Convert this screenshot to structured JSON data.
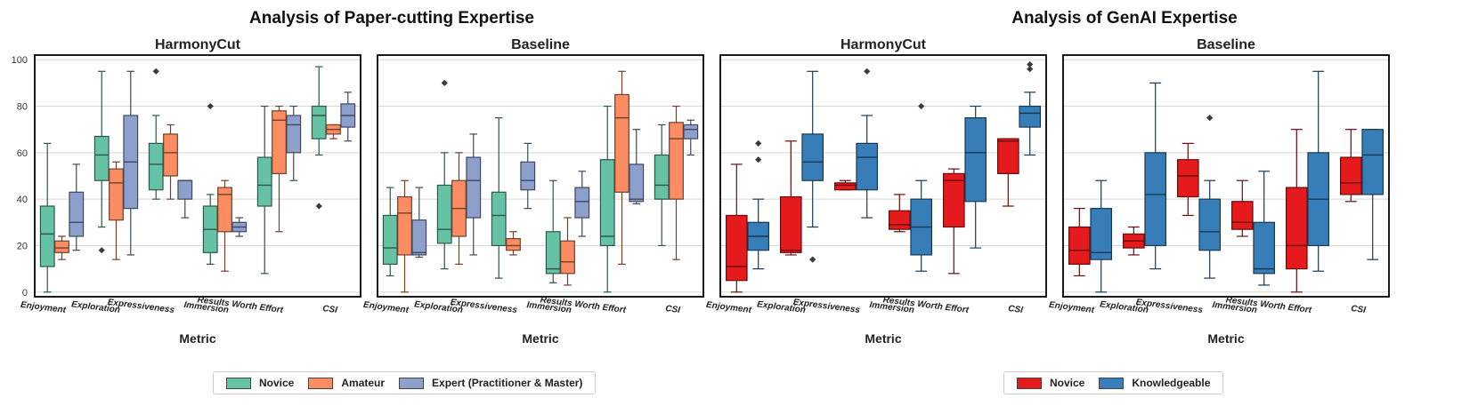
{
  "figure": {
    "left_title": "Analysis of Paper-cutting Expertise",
    "right_title": "Analysis of GenAI Expertise"
  },
  "legend_left": [
    {
      "label": "Novice",
      "color": "#66c2a5"
    },
    {
      "label": "Amateur",
      "color": "#fc8d62"
    },
    {
      "label": "Expert (Practitioner & Master)",
      "color": "#8da0cb"
    }
  ],
  "legend_right": [
    {
      "label": "Novice",
      "color": "#e41a1c"
    },
    {
      "label": "Knowledgeable",
      "color": "#377eb8"
    }
  ],
  "chart_data": [
    {
      "type": "box",
      "title": "HarmonyCut",
      "group": "Paper-cutting Expertise",
      "xlabel": "Metric",
      "ylabel": "",
      "ylim": [
        -2,
        102
      ],
      "yticks": [
        0,
        20,
        40,
        60,
        80,
        100
      ],
      "grid": true,
      "categories": [
        "Enjoyment",
        "Exploration",
        "Expressiveness",
        "Immersion",
        "Results Worth Effort",
        "CSI"
      ],
      "series": [
        {
          "name": "Novice",
          "color": "#66c2a5",
          "boxes": [
            {
              "wlo": 0,
              "q1": 11,
              "med": 25,
              "q3": 37,
              "whi": 64,
              "outliers": []
            },
            {
              "wlo": 28,
              "q1": 48,
              "med": 59,
              "q3": 67,
              "whi": 95,
              "outliers": [
                18
              ]
            },
            {
              "wlo": 40,
              "q1": 44,
              "med": 55,
              "q3": 64,
              "whi": 76,
              "outliers": [
                95
              ]
            },
            {
              "wlo": 12,
              "q1": 17,
              "med": 27,
              "q3": 37,
              "whi": 42,
              "outliers": [
                80
              ]
            },
            {
              "wlo": 8,
              "q1": 37,
              "med": 46,
              "q3": 58,
              "whi": 80,
              "outliers": []
            },
            {
              "wlo": 59,
              "q1": 66,
              "med": 76,
              "q3": 80,
              "whi": 97,
              "outliers": [
                37
              ]
            }
          ]
        },
        {
          "name": "Amateur",
          "color": "#fc8d62",
          "boxes": [
            {
              "wlo": 14,
              "q1": 17,
              "med": 19,
              "q3": 22,
              "whi": 24,
              "outliers": []
            },
            {
              "wlo": 14,
              "q1": 31,
              "med": 47,
              "q3": 53,
              "whi": 56,
              "outliers": []
            },
            {
              "wlo": 40,
              "q1": 50,
              "med": 60,
              "q3": 68,
              "whi": 72,
              "outliers": []
            },
            {
              "wlo": 9,
              "q1": 26,
              "med": 42,
              "q3": 45,
              "whi": 48,
              "outliers": []
            },
            {
              "wlo": 26,
              "q1": 51,
              "med": 74,
              "q3": 78,
              "whi": 80,
              "outliers": []
            },
            {
              "wlo": 66,
              "q1": 68,
              "med": 70,
              "q3": 72,
              "whi": 72,
              "outliers": []
            }
          ]
        },
        {
          "name": "Expert (Practitioner & Master)",
          "color": "#8da0cb",
          "boxes": [
            {
              "wlo": 18,
              "q1": 24,
              "med": 30,
              "q3": 43,
              "whi": 55,
              "outliers": []
            },
            {
              "wlo": 16,
              "q1": 36,
              "med": 56,
              "q3": 76,
              "whi": 95,
              "outliers": []
            },
            {
              "wlo": 32,
              "q1": 40,
              "med": 48,
              "q3": 48,
              "whi": 48,
              "outliers": []
            },
            {
              "wlo": 24,
              "q1": 26,
              "med": 28,
              "q3": 30,
              "whi": 32,
              "outliers": []
            },
            {
              "wlo": 48,
              "q1": 60,
              "med": 72,
              "q3": 76,
              "whi": 80,
              "outliers": []
            },
            {
              "wlo": 65,
              "q1": 71,
              "med": 76,
              "q3": 81,
              "whi": 86,
              "outliers": []
            }
          ]
        }
      ]
    },
    {
      "type": "box",
      "title": "Baseline",
      "group": "Paper-cutting Expertise",
      "xlabel": "Metric",
      "ylabel": "",
      "ylim": [
        -2,
        102
      ],
      "yticks": [
        0,
        20,
        40,
        60,
        80,
        100
      ],
      "grid": true,
      "categories": [
        "Enjoyment",
        "Exploration",
        "Expressiveness",
        "Immersion",
        "Results Worth Effort",
        "CSI"
      ],
      "series": [
        {
          "name": "Novice",
          "color": "#66c2a5",
          "boxes": [
            {
              "wlo": 7,
              "q1": 12,
              "med": 19,
              "q3": 33,
              "whi": 45,
              "outliers": []
            },
            {
              "wlo": 10,
              "q1": 21,
              "med": 27,
              "q3": 46,
              "whi": 60,
              "outliers": [
                90
              ]
            },
            {
              "wlo": 6,
              "q1": 20,
              "med": 33,
              "q3": 43,
              "whi": 75,
              "outliers": []
            },
            {
              "wlo": 4,
              "q1": 8,
              "med": 10,
              "q3": 26,
              "whi": 48,
              "outliers": []
            },
            {
              "wlo": 0,
              "q1": 20,
              "med": 24,
              "q3": 57,
              "whi": 80,
              "outliers": []
            },
            {
              "wlo": 20,
              "q1": 40,
              "med": 46,
              "q3": 59,
              "whi": 72,
              "outliers": []
            }
          ]
        },
        {
          "name": "Amateur",
          "color": "#fc8d62",
          "boxes": [
            {
              "wlo": 0,
              "q1": 16,
              "med": 34,
              "q3": 41,
              "whi": 48,
              "outliers": []
            },
            {
              "wlo": 12,
              "q1": 24,
              "med": 36,
              "q3": 48,
              "whi": 60,
              "outliers": []
            },
            {
              "wlo": 16,
              "q1": 18,
              "med": 20,
              "q3": 23,
              "whi": 26,
              "outliers": []
            },
            {
              "wlo": 3,
              "q1": 8,
              "med": 13,
              "q3": 22,
              "whi": 32,
              "outliers": []
            },
            {
              "wlo": 12,
              "q1": 43,
              "med": 75,
              "q3": 85,
              "whi": 95,
              "outliers": []
            },
            {
              "wlo": 14,
              "q1": 40,
              "med": 66,
              "q3": 73,
              "whi": 80,
              "outliers": []
            }
          ]
        },
        {
          "name": "Expert (Practitioner & Master)",
          "color": "#8da0cb",
          "boxes": [
            {
              "wlo": 15,
              "q1": 16,
              "med": 17,
              "q3": 31,
              "whi": 45,
              "outliers": []
            },
            {
              "wlo": 16,
              "q1": 32,
              "med": 48,
              "q3": 58,
              "whi": 68,
              "outliers": []
            },
            {
              "wlo": 36,
              "q1": 44,
              "med": 48,
              "q3": 56,
              "whi": 64,
              "outliers": []
            },
            {
              "wlo": 24,
              "q1": 32,
              "med": 39,
              "q3": 45,
              "whi": 52,
              "outliers": []
            },
            {
              "wlo": 38,
              "q1": 39,
              "med": 40,
              "q3": 55,
              "whi": 70,
              "outliers": []
            },
            {
              "wlo": 59,
              "q1": 66,
              "med": 70,
              "q3": 72,
              "whi": 74,
              "outliers": []
            }
          ]
        }
      ]
    },
    {
      "type": "box",
      "title": "HarmonyCut",
      "group": "GenAI Expertise",
      "xlabel": "Metric",
      "ylabel": "",
      "ylim": [
        -2,
        102
      ],
      "yticks": [
        0,
        20,
        40,
        60,
        80,
        100
      ],
      "grid": true,
      "categories": [
        "Enjoyment",
        "Exploration",
        "Expressiveness",
        "Immersion",
        "Results Worth Effort",
        "CSI"
      ],
      "series": [
        {
          "name": "Novice",
          "color": "#e41a1c",
          "boxes": [
            {
              "wlo": 0,
              "q1": 5,
              "med": 11,
              "q3": 33,
              "whi": 55,
              "outliers": []
            },
            {
              "wlo": 16,
              "q1": 17,
              "med": 18,
              "q3": 41,
              "whi": 65,
              "outliers": []
            },
            {
              "wlo": 44,
              "q1": 44,
              "med": 46,
              "q3": 47,
              "whi": 48,
              "outliers": []
            },
            {
              "wlo": 26,
              "q1": 27,
              "med": 29,
              "q3": 35,
              "whi": 42,
              "outliers": []
            },
            {
              "wlo": 8,
              "q1": 28,
              "med": 48,
              "q3": 51,
              "whi": 53,
              "outliers": []
            },
            {
              "wlo": 37,
              "q1": 51,
              "med": 65,
              "q3": 66,
              "whi": 66,
              "outliers": []
            }
          ]
        },
        {
          "name": "Knowledgeable",
          "color": "#377eb8",
          "boxes": [
            {
              "wlo": 10,
              "q1": 18,
              "med": 24,
              "q3": 30,
              "whi": 40,
              "outliers": [
                57,
                64
              ]
            },
            {
              "wlo": 28,
              "q1": 48,
              "med": 56,
              "q3": 68,
              "whi": 95,
              "outliers": [
                14
              ]
            },
            {
              "wlo": 32,
              "q1": 44,
              "med": 58,
              "q3": 64,
              "whi": 76,
              "outliers": [
                95
              ]
            },
            {
              "wlo": 9,
              "q1": 16,
              "med": 28,
              "q3": 40,
              "whi": 48,
              "outliers": [
                80
              ]
            },
            {
              "wlo": 19,
              "q1": 39,
              "med": 60,
              "q3": 75,
              "whi": 80,
              "outliers": []
            },
            {
              "wlo": 59,
              "q1": 71,
              "med": 77,
              "q3": 80,
              "whi": 86,
              "outliers": [
                96,
                98
              ]
            }
          ]
        }
      ]
    },
    {
      "type": "box",
      "title": "Baseline",
      "group": "GenAI Expertise",
      "xlabel": "Metric",
      "ylabel": "",
      "ylim": [
        -2,
        102
      ],
      "yticks": [
        0,
        20,
        40,
        60,
        80,
        100
      ],
      "grid": true,
      "categories": [
        "Enjoyment",
        "Exploration",
        "Expressiveness",
        "Immersion",
        "Results Worth Effort",
        "CSI"
      ],
      "series": [
        {
          "name": "Novice",
          "color": "#e41a1c",
          "boxes": [
            {
              "wlo": 7,
              "q1": 12,
              "med": 18,
              "q3": 28,
              "whi": 36,
              "outliers": []
            },
            {
              "wlo": 16,
              "q1": 19,
              "med": 22,
              "q3": 25,
              "whi": 28,
              "outliers": []
            },
            {
              "wlo": 33,
              "q1": 41,
              "med": 50,
              "q3": 57,
              "whi": 64,
              "outliers": []
            },
            {
              "wlo": 24,
              "q1": 27,
              "med": 30,
              "q3": 39,
              "whi": 48,
              "outliers": []
            },
            {
              "wlo": 0,
              "q1": 10,
              "med": 20,
              "q3": 45,
              "whi": 70,
              "outliers": []
            },
            {
              "wlo": 39,
              "q1": 42,
              "med": 47,
              "q3": 58,
              "whi": 70,
              "outliers": []
            }
          ]
        },
        {
          "name": "Knowledgeable",
          "color": "#377eb8",
          "boxes": [
            {
              "wlo": 0,
              "q1": 14,
              "med": 17,
              "q3": 36,
              "whi": 48,
              "outliers": []
            },
            {
              "wlo": 10,
              "q1": 20,
              "med": 42,
              "q3": 60,
              "whi": 90,
              "outliers": []
            },
            {
              "wlo": 6,
              "q1": 18,
              "med": 26,
              "q3": 40,
              "whi": 48,
              "outliers": [
                75
              ]
            },
            {
              "wlo": 3,
              "q1": 8,
              "med": 10,
              "q3": 30,
              "whi": 52,
              "outliers": []
            },
            {
              "wlo": 9,
              "q1": 20,
              "med": 40,
              "q3": 60,
              "whi": 95,
              "outliers": []
            },
            {
              "wlo": 14,
              "q1": 42,
              "med": 59,
              "q3": 70,
              "whi": 70,
              "outliers": []
            }
          ]
        }
      ]
    }
  ]
}
